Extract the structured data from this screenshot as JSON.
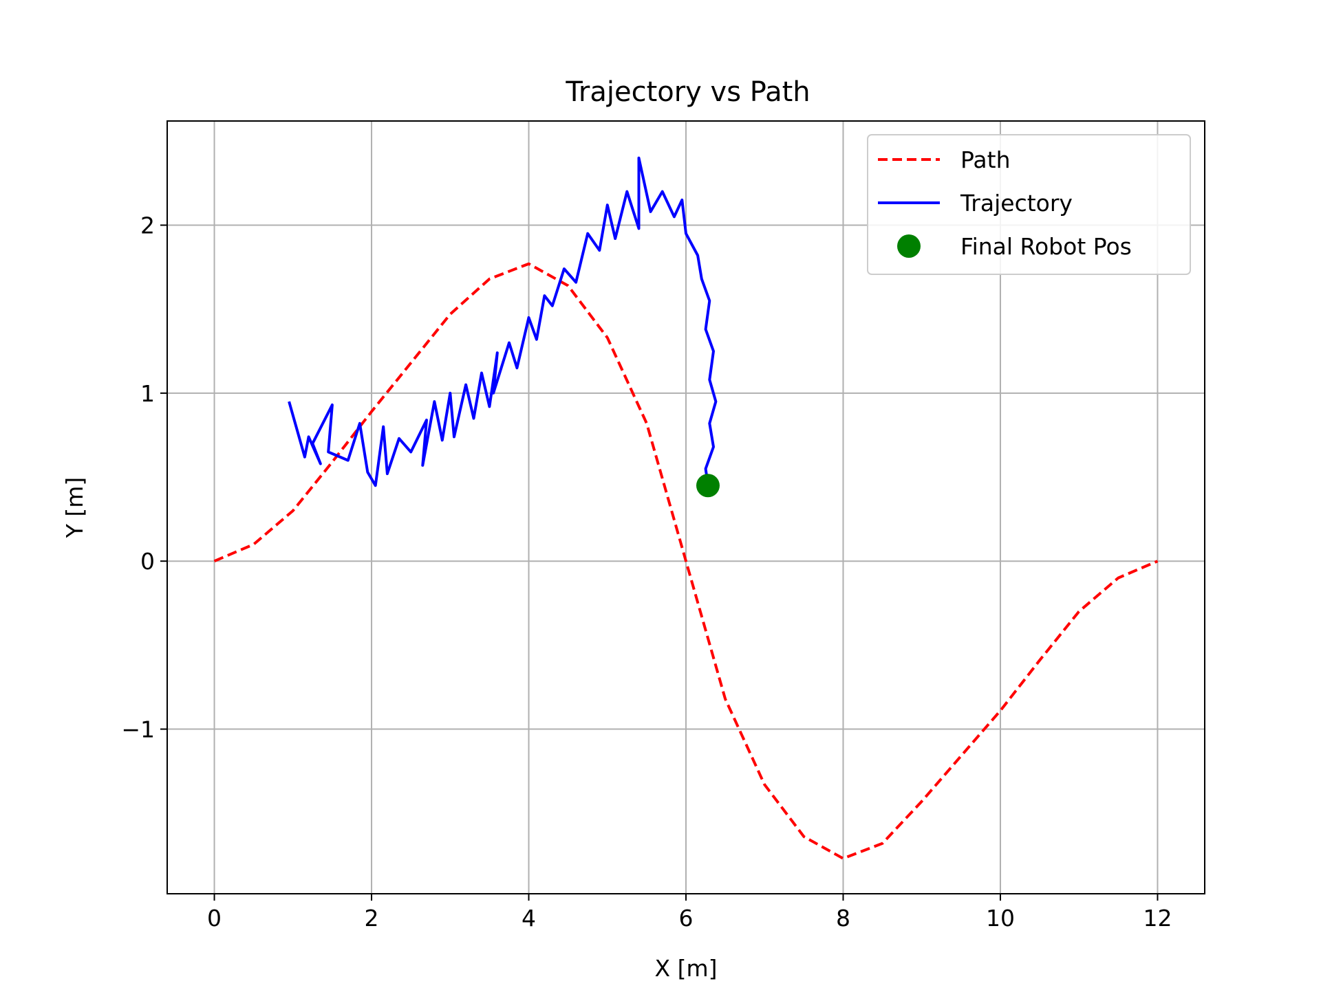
{
  "chart_data": {
    "type": "line",
    "title": "Trajectory vs Path",
    "xlabel": "X [m]",
    "ylabel": "Y [m]",
    "xlim": [
      -0.6,
      12.6
    ],
    "ylim": [
      -1.98,
      2.62
    ],
    "xticks": [
      0,
      2,
      4,
      6,
      8,
      10,
      12
    ],
    "xtick_labels": [
      "0",
      "2",
      "4",
      "6",
      "8",
      "10",
      "12"
    ],
    "yticks": [
      -1,
      0,
      1,
      2
    ],
    "ytick_labels": [
      "−1",
      "0",
      "1",
      "2"
    ],
    "grid": true,
    "legend_position": "top-right",
    "colors": {
      "path": "#ff0000",
      "trajectory": "#0000ff",
      "final": "#008000",
      "grid": "#b0b0b0"
    },
    "series": [
      {
        "name": "Path",
        "style": "dashed",
        "color": "#ff0000",
        "points": [
          [
            0.0,
            0.0
          ],
          [
            0.5,
            0.1
          ],
          [
            1.0,
            0.3
          ],
          [
            1.5,
            0.59
          ],
          [
            2.0,
            0.89
          ],
          [
            2.5,
            1.18
          ],
          [
            3.0,
            1.47
          ],
          [
            3.5,
            1.68
          ],
          [
            4.0,
            1.77
          ],
          [
            4.5,
            1.64
          ],
          [
            5.0,
            1.33
          ],
          [
            5.5,
            0.82
          ],
          [
            6.0,
            0.0
          ],
          [
            6.5,
            -0.82
          ],
          [
            7.0,
            -1.33
          ],
          [
            7.5,
            -1.64
          ],
          [
            8.0,
            -1.77
          ],
          [
            8.5,
            -1.68
          ],
          [
            9.0,
            -1.43
          ],
          [
            9.5,
            -1.16
          ],
          [
            10.0,
            -0.89
          ],
          [
            10.5,
            -0.59
          ],
          [
            11.0,
            -0.3
          ],
          [
            11.5,
            -0.1
          ],
          [
            12.0,
            0.0
          ]
        ]
      },
      {
        "name": "Trajectory",
        "style": "solid",
        "color": "#0000ff",
        "points": [
          [
            0.95,
            0.95
          ],
          [
            1.15,
            0.62
          ],
          [
            1.2,
            0.74
          ],
          [
            1.35,
            0.58
          ],
          [
            1.25,
            0.7
          ],
          [
            1.5,
            0.93
          ],
          [
            1.45,
            0.65
          ],
          [
            1.7,
            0.6
          ],
          [
            1.85,
            0.82
          ],
          [
            1.95,
            0.53
          ],
          [
            2.05,
            0.45
          ],
          [
            2.15,
            0.8
          ],
          [
            2.2,
            0.52
          ],
          [
            2.35,
            0.73
          ],
          [
            2.5,
            0.65
          ],
          [
            2.7,
            0.84
          ],
          [
            2.65,
            0.57
          ],
          [
            2.8,
            0.95
          ],
          [
            2.9,
            0.72
          ],
          [
            3.0,
            1.0
          ],
          [
            3.05,
            0.74
          ],
          [
            3.2,
            1.05
          ],
          [
            3.3,
            0.85
          ],
          [
            3.4,
            1.12
          ],
          [
            3.5,
            0.92
          ],
          [
            3.6,
            1.24
          ],
          [
            3.55,
            1.0
          ],
          [
            3.75,
            1.3
          ],
          [
            3.85,
            1.15
          ],
          [
            4.0,
            1.45
          ],
          [
            4.1,
            1.32
          ],
          [
            4.2,
            1.58
          ],
          [
            4.3,
            1.52
          ],
          [
            4.45,
            1.74
          ],
          [
            4.6,
            1.66
          ],
          [
            4.75,
            1.95
          ],
          [
            4.9,
            1.85
          ],
          [
            5.0,
            2.12
          ],
          [
            5.1,
            1.92
          ],
          [
            5.25,
            2.2
          ],
          [
            5.4,
            1.98
          ],
          [
            5.4,
            2.4
          ],
          [
            5.55,
            2.08
          ],
          [
            5.7,
            2.2
          ],
          [
            5.85,
            2.05
          ],
          [
            5.95,
            2.15
          ],
          [
            6.0,
            1.95
          ],
          [
            6.15,
            1.82
          ],
          [
            6.2,
            1.68
          ],
          [
            6.3,
            1.55
          ],
          [
            6.25,
            1.38
          ],
          [
            6.35,
            1.25
          ],
          [
            6.3,
            1.08
          ],
          [
            6.38,
            0.95
          ],
          [
            6.3,
            0.82
          ],
          [
            6.35,
            0.68
          ],
          [
            6.25,
            0.55
          ],
          [
            6.28,
            0.45
          ]
        ]
      }
    ],
    "final_robot_pos": {
      "name": "Final Robot Pos",
      "x": 6.28,
      "y": 0.45,
      "color": "#008000"
    }
  }
}
